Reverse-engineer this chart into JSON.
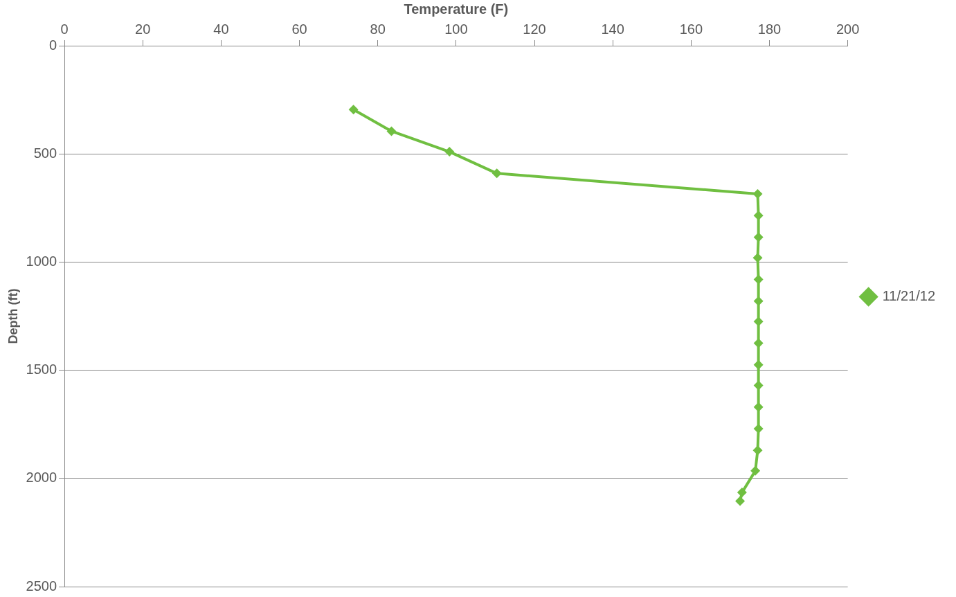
{
  "chart_data": {
    "type": "line",
    "xlabel": "Temperature (F)",
    "ylabel": "Depth (ft)",
    "xlim": [
      0,
      200
    ],
    "xticks": [
      0,
      20,
      40,
      60,
      80,
      100,
      120,
      140,
      160,
      180,
      200
    ],
    "ylim": [
      2500,
      0
    ],
    "yticks": [
      0,
      500,
      1000,
      1500,
      2000,
      2500
    ],
    "grid": "y",
    "legend": "right",
    "marker": "diamond",
    "line_style": "solid",
    "series": [
      {
        "name": "11/21/12",
        "color": "#70bf41",
        "x": [
          73.8,
          83.5,
          98.3,
          110.4,
          177,
          177.2,
          177.2,
          177,
          177.2,
          177.2,
          177.2,
          177.2,
          177.2,
          177.2,
          177.2,
          177.2,
          177,
          176.4,
          173,
          172.5
        ],
        "values": [
          295,
          395,
          490,
          590,
          685,
          785,
          885,
          980,
          1080,
          1180,
          1275,
          1375,
          1475,
          1570,
          1670,
          1770,
          1870,
          1965,
          2065,
          2105
        ]
      }
    ]
  }
}
